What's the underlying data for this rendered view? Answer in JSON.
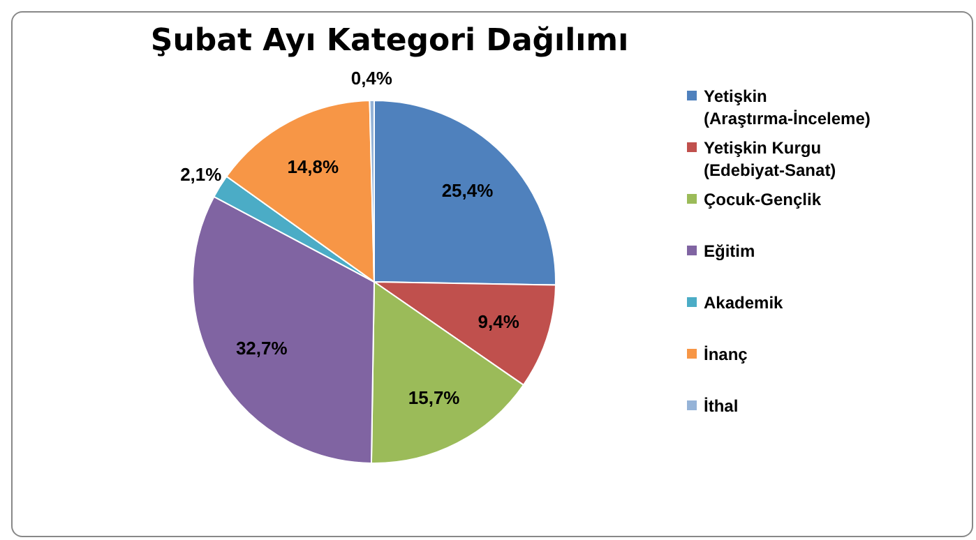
{
  "chart_data": {
    "type": "pie",
    "title": "Şubat Ayı Kategori Dağılımı",
    "categories": [
      "Yetişkin (Araştırma-İnceleme)",
      "Yetişkin Kurgu (Edebiyat-Sanat)",
      "Çocuk-Gençlik",
      "Eğitim",
      "Akademik",
      "İnanç",
      "İthal"
    ],
    "values": [
      25.4,
      9.4,
      15.7,
      32.7,
      2.1,
      14.8,
      0.4
    ],
    "colors": [
      "#4f81bd",
      "#c0504d",
      "#9bbb59",
      "#8064a2",
      "#4bacc6",
      "#f79646",
      "#95b3d7"
    ],
    "value_labels": [
      "25,4%",
      "9,4%",
      "15,7%",
      "32,7%",
      "2,1%",
      "14,8%",
      "0,4%"
    ],
    "legend": "right"
  }
}
